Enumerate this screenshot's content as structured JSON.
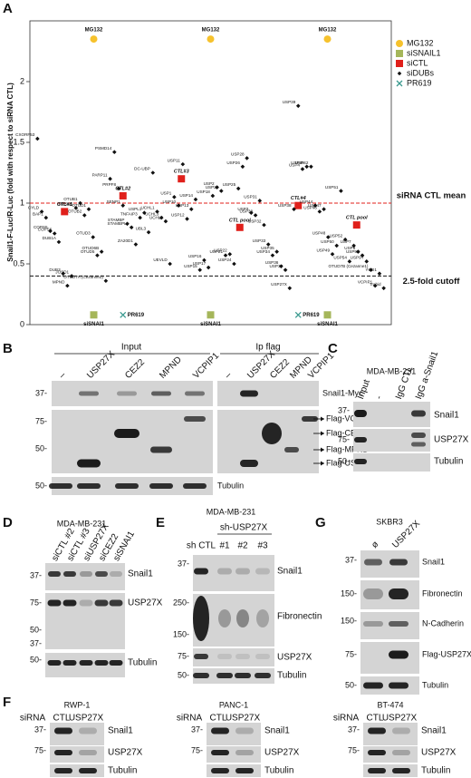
{
  "chart_data": {
    "type": "scatter",
    "label": "A",
    "ylabel": "Snail1-F-Luc/R-Luc (fold with respect to siRNA CTL)",
    "ylim": [
      0,
      2.5
    ],
    "yticks": [
      0,
      0.5,
      1,
      1.5,
      2
    ],
    "grid": false,
    "legend": "right",
    "reference_lines": [
      {
        "value": 1,
        "label": "siRNA CTL mean",
        "color": "#e0201b"
      },
      {
        "value": 0.4,
        "label": "2.5-fold cutoff",
        "color": "#111111"
      }
    ],
    "series": [
      {
        "name": "MG132",
        "color": "#f6c22d",
        "marker": "circle",
        "labels": [
          "MG132",
          "MG132",
          "MG132"
        ],
        "values": [
          2.35,
          2.35,
          2.35
        ]
      },
      {
        "name": "siSNAIL1",
        "color": "#a5b65a",
        "marker": "square",
        "labels": [
          "siSNAI1",
          "siSNAI1",
          "siSNAI1"
        ],
        "values": [
          0.08,
          0.08,
          0.08
        ]
      },
      {
        "name": "siCTL",
        "color": "#e0201b",
        "marker": "square",
        "labels": [
          "CTL#1",
          "CTL#2",
          "CTL#3",
          "CTL pool",
          "CTL#4",
          "CTL pool"
        ],
        "values": [
          0.93,
          1.06,
          1.2,
          0.8,
          0.98,
          0.82
        ]
      },
      {
        "name": "siDUBs",
        "color": "#111111",
        "marker": "diamond",
        "labels": [
          "CXORF53",
          "CYLD",
          "BAP1",
          "COPS5",
          "COPS6",
          "DUB1A",
          "DUB3",
          "MPND",
          "JOSD1",
          "MYSM1",
          "OTUB1",
          "OTUB2",
          "OTUD1",
          "OTUD3",
          "OTUD5",
          "OTUD6B",
          "OTUD7A (Cezanne2)",
          "PARP11",
          "PSMD14",
          "PRPF8",
          "SENP1",
          "STAMBP",
          "STAMBPL1",
          "ZA20D1",
          "TNFAIP3",
          "USPL1",
          "UBL3",
          "DC-UBP",
          "UCHL1",
          "UCHL3",
          "UCHL5",
          "UEVLD",
          "USP1",
          "USP10",
          "USP11",
          "USP12",
          "USP13",
          "USP14",
          "USP15",
          "USP16",
          "USP17",
          "USP18",
          "USP2",
          "USP20",
          "USP21",
          "USP22",
          "USP24",
          "USP25",
          "USP26",
          "USP28",
          "USP3",
          "USP30",
          "USP31",
          "USP32",
          "USP33",
          "USP34",
          "USP35",
          "USP36",
          "USP37",
          "USP27X",
          "USP38",
          "USP39",
          "USP4",
          "USP40",
          "USP42",
          "USP44",
          "USP46",
          "USP47",
          "USP48",
          "USP49",
          "USP50",
          "USP51",
          "USP52",
          "USP54",
          "USP7",
          "USP8",
          "USP9X",
          "USP9Y",
          "OTUD7B (Cezanne1)",
          "VCPIP1",
          "YOD1",
          "Trabid"
        ],
        "values": [
          1.53,
          0.93,
          0.88,
          0.77,
          0.75,
          0.68,
          0.42,
          0.32,
          0.4,
          0.96,
          1.0,
          0.9,
          0.95,
          0.72,
          0.57,
          0.6,
          0.36,
          1.2,
          1.42,
          1.12,
          0.98,
          0.83,
          0.8,
          0.66,
          0.88,
          0.92,
          0.76,
          1.25,
          0.93,
          0.88,
          0.85,
          0.5,
          1.05,
          0.98,
          1.32,
          0.87,
          0.95,
          1.03,
          0.45,
          0.53,
          0.47,
          1.06,
          1.13,
          1.1,
          0.57,
          0.58,
          0.5,
          1.12,
          1.3,
          1.37,
          0.92,
          0.9,
          1.02,
          0.82,
          0.66,
          0.57,
          0.6,
          0.48,
          0.45,
          0.3,
          0.95,
          1.8,
          1.28,
          1.3,
          1.3,
          0.98,
          0.93,
          0.95,
          0.72,
          0.58,
          0.65,
          1.1,
          0.7,
          0.52,
          0.65,
          0.6,
          0.57,
          0.52,
          0.45,
          0.32,
          0.42,
          0.3
        ]
      },
      {
        "name": "PR619",
        "color": "#3a9a8f",
        "marker": "cross",
        "labels": [
          "PR619",
          "PR619"
        ],
        "values": [
          0.08,
          0.08
        ]
      }
    ]
  },
  "panel_b": {
    "label": "B",
    "headers": [
      "Input",
      "Ip flag"
    ],
    "lanes": [
      "–",
      "USP27X",
      "CEZ2",
      "MPND",
      "VCPIP1",
      "–",
      "USP27X",
      "CEZ2",
      "MPND",
      "VCPIP1"
    ],
    "markers": [
      "37-",
      "75-",
      "50-",
      "50-"
    ],
    "rows": [
      "Snail1-Myc",
      "Flag-VCPIP1",
      "Flag-CEZ2",
      "Flag-MPND",
      "Flag-USP27X",
      "Tubulin"
    ]
  },
  "panel_c": {
    "label": "C",
    "cell_line": "MDA-MB-231",
    "lanes": [
      "Input",
      "-",
      "IgG CTL",
      "IgG a-Snail1"
    ],
    "markers": [
      "37-",
      "75-",
      "50-"
    ],
    "rows": [
      "Snail1",
      "USP27X",
      "Tubulin"
    ]
  },
  "panel_d": {
    "label": "D",
    "cell_line": "MDA-MB-231",
    "lanes": [
      "siCTL #2",
      "siCTL #3",
      "siUSP27X",
      "siCEZ2",
      "siSNAI1"
    ],
    "markers": [
      "37-",
      "75-",
      "50-",
      "37-",
      "50-"
    ],
    "rows": [
      "Snail1",
      "USP27X",
      "Tubulin"
    ]
  },
  "panel_e": {
    "label": "E",
    "cell_line": "MDA-MB-231",
    "headers": [
      "sh-USP27X"
    ],
    "lanes": [
      "sh CTL",
      "#1",
      "#2",
      "#3"
    ],
    "markers": [
      "37-",
      "250-",
      "150-",
      "75-",
      "50-"
    ],
    "rows": [
      "Snail1",
      "Fibronectin",
      "USP27X",
      "Tubulin"
    ]
  },
  "panel_f": {
    "label": "F",
    "groups": [
      {
        "cell_line": "RWP-1",
        "row_title": "siRNA",
        "lanes": [
          "CTL",
          "USP27X"
        ],
        "markers": [
          "37-",
          "75-"
        ],
        "rows": [
          "Snail1",
          "USP27X",
          "Tubulin"
        ]
      },
      {
        "cell_line": "PANC-1",
        "row_title": "siRNA",
        "lanes": [
          "CTL",
          "USP27X"
        ],
        "markers": [
          "37-",
          "75-"
        ],
        "rows": [
          "Snail1",
          "USP27X",
          "Tubulin"
        ]
      },
      {
        "cell_line": "BT-474",
        "row_title": "siRNA",
        "lanes": [
          "CTL",
          "USP27X"
        ],
        "markers": [
          "37-",
          "75-"
        ],
        "rows": [
          "Snail1",
          "USP27X",
          "Tubulin"
        ]
      }
    ]
  },
  "panel_g": {
    "label": "G",
    "cell_line": "SKBR3",
    "lanes": [
      "ø",
      "USP27X"
    ],
    "markers": [
      "37-",
      "150-",
      "150-",
      "75-",
      "50-"
    ],
    "rows": [
      "Snail1",
      "Fibronectin",
      "N-Cadherin",
      "Flag-USP27X",
      "Tubulin"
    ]
  }
}
